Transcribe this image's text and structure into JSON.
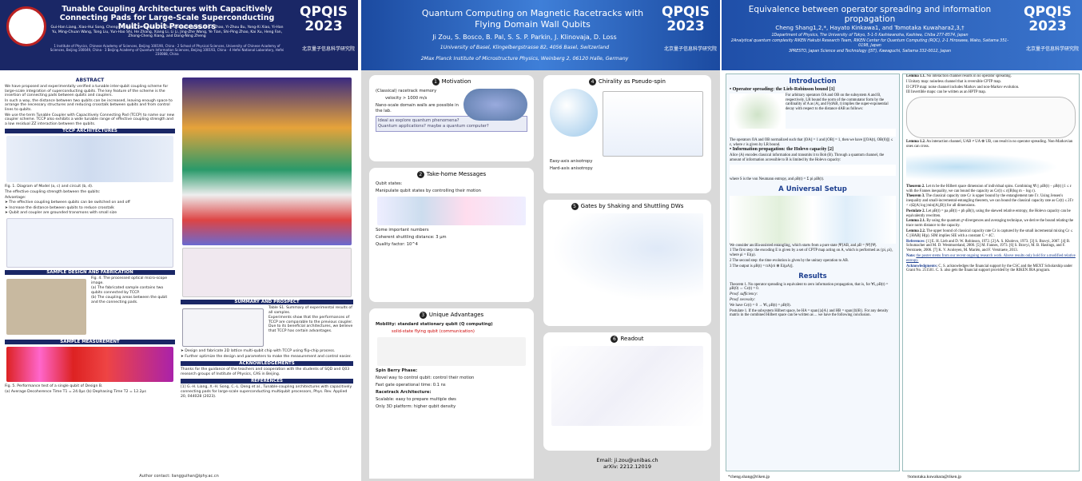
{
  "posters": [
    {
      "badge": "QPQIS 2023",
      "org": "北京量子信息科学研究院",
      "title": "Tunable Coupling Architectures with Capacitively Connecting Pads for Large-Scale Superconducting Multi-Qubit Processors",
      "authors": "Gui-Han Liang, Xiao-Hui Song, Cheng-Lin Deng, Xu-Yang Gu, Yu Yan, Zheng-Yang Mei, Si-Lu Zhao, Yi-Zhou Bu, Yong-Xi Xiao, Yi-Han Yu, Ming-Chuan Wang, Tong Liu, Yun-Hao Shi, He Zhang, Xiang Li, Li Li, Jing-Zhe Wang, Ye Tian, Shi-Ping Zhao, Kai Xu, Heng Fan, Zhong-Cheng Xiang, and Dong-Ning Zheng",
      "affiliations": "1 Institute of Physics, Chinese Academy of Sciences, Beijing 100190, China · 2 School of Physical Sciences, University of Chinese Academy of Sciences, Beijing 100049, China · 3 Beijing Academy of Quantum Information Sciences, Beijing 100193, China · 4 Hefei National Laboratory, Hefei 230088, China",
      "sections": [
        {
          "heading": "ABSTRACT",
          "lines": [
            "We have proposed and experimentally verified a tunable inter-qubit coupling scheme for large-scale integration of superconducting qubits. The key feature of the scheme is the insertion of connecting pads between qubits and couplers.",
            "In such a way, the distance between two qubits can be increased, leaving enough space to arrange the necessary structures and reducing crosstalk between qubits and from control lines to qubits.",
            "We use the term Tunable Coupler with Capacitively Connecting Pad (TCCP) to name our new coupler scheme. TCCP also exhibits a wide tunable range of effective coupling strength and a low residual ZZ interaction between the qubits."
          ]
        },
        {
          "heading": "TCCP ARCHITECTURES",
          "lines": [
            "Fig. 1. Diagram of Model (a, c) and circuit (b, d).",
            "The effective coupling strength between the qubits:",
            "Advantage:",
            "➤ The effective coupling between qubits can be switched on and off",
            "➤ Increase the distance between qubits to reduce crosstalk",
            "➤ Qubit and coupler are grounded transmons with small size"
          ]
        },
        {
          "heading": "SAMPLE DESIGN AND FABRICATION",
          "lines": [
            "Fig. 4. The processed optical micro-scope image.",
            "(a) The fabricated sample contains two qubits connected by TCCP.",
            "(b) The coupling areas between the qubit and the connecting pads."
          ]
        },
        {
          "heading": "SAMPLE MEASUREMENT",
          "lines": [
            "Fig. 5. Performance test of a single qubit of Design B.",
            "(a) Average Decoherence Time T1 = 24.0μs  (b) Dephasing Time T2 = 12.2μs"
          ]
        },
        {
          "heading": "SUMMARY AND PROSPECT",
          "lines": [
            "Table S1. Summary of experimental results of all samples.",
            "Experiments show that the performances of TCCP are comparable to the previous coupler. Due to its beneficial architectures, we believe that TCCP has certain advantages.",
            "➤ Design and fabricate 2D lattice multi-qubit chip with TCCP using flip-chip process.",
            "➤ Further optimize the design and parameters to make the measurement and control easier."
          ]
        },
        {
          "heading": "ACKNOWLEDGEMENTS",
          "lines": [
            "Thanks for the guidance of the teachers and cooperation with the students of SQD and Q03 research groups of Institute of Physics, CAS in Beijing."
          ]
        },
        {
          "heading": "REFERENCES",
          "lines": [
            "[1] G.-H. Liang, X.-H. Song, C.-L. Deng et al., Tunable-coupling architectures with capacitively connecting pads for large-scale superconducting multiqubit processors, Phys. Rev. Applied 20, 044028 (2023)."
          ]
        }
      ],
      "footer": "Author contact: liangguihan@iphy.ac.cn"
    },
    {
      "badge": "QPQIS 2023",
      "org": "北京量子信息科学研究院",
      "title": "Quantum Computing on Magnetic Racetracks with Flying Domain Wall Qubits",
      "authors": "Ji Zou, S. Bosco, B. Pal, S. S. P. Parkin, J. Klinovaja, D. Loss",
      "affiliations": [
        "1University of Basel, Klingelbergstrasse 82, 4056 Basel, Switzerland",
        "2Max Planck Institute of Microstructure Physics, Weinberg 2, 06120 Halle, Germany"
      ],
      "panels": [
        {
          "number": "1",
          "heading": "Motivation",
          "lines": [
            "(Classical) racetrack memory",
            "velocity > 1000 m/s",
            "Nano-scale domain walls are possible in the lab.",
            "Ideal as explore quantum phenomena? Quantum applications? maybe a quantum computer?"
          ]
        },
        {
          "number": "2",
          "heading": "Take-home Messages",
          "lines": [
            "Qubit states:",
            "Manipulate qubit states by controlling their motion",
            "Some important numbers",
            "Coherent shuttling distance: 3 μm",
            "Quality factor: 10^4"
          ]
        },
        {
          "number": "3",
          "heading": "Unique Advantages",
          "lines": [
            "Mobility: standard stationary qubit (Q computing)",
            "solid-state flying qubit (communication)",
            "Spin Berry Phase:",
            "Novel way to control qubit: control their motion",
            "Fast gate operational time: 0.1 ns",
            "Racetrack Architecture:",
            "Scalable: easy to prepare multiple dws",
            "Only 3D platform: higher qubit density"
          ]
        },
        {
          "number": "4",
          "heading": "Chirality as Pseudo-spin",
          "lines": [
            "Easy-axis anisotropy",
            "Hard-axis anisotropy"
          ]
        },
        {
          "number": "5",
          "heading": "Gates by Shaking and Shuttling DWs",
          "lines": []
        },
        {
          "number": "6",
          "heading": "Readout",
          "lines": []
        }
      ],
      "email": "Email: ji.zou@unibas.ch",
      "arxiv": "arXiv: 2212.12019"
    },
    {
      "badge": "QPQIS 2023",
      "org": "北京量子信息科学研究院",
      "title": "Equivalence between operator spreading and information propagation",
      "authors": "Cheng Shang1,2,*, Hayato Kinkawa1, and Tomotaka Kuwahara2,3,†",
      "affiliations": [
        "1Department of Physics, The University of Tokyo, 5-1-5 Kashiwanoha, Kashiwa, Chiba 277-8574, Japan",
        "2Analytical quantum complexity RIKEN Hakubi Research Team, RIKEN Center for Quantum Computing (RQC), 2-1 Hirosawa, Wako, Saitama 351-0198, Japan",
        "3PRESTO, Japan Science and Technology (JST), Kawaguchi, Saitama 332-0012, Japan"
      ],
      "left": [
        {
          "heading": "Introduction",
          "lines": [
            "• Operator spreading: the Lieb-Robinson bound [1]",
            "For arbitrary operators OA and OB on the subsystem A and B, respectively, LR bound the norm of the commutator form by the cardinality of A as |A|, and F(dAB, t) implies the super-exponential decay with respect to the distance dAB as follows:",
            "The operators OA and OB normalized such that ||OA|| = 1 and ||OB|| = 1, then we have ||[OA(t), OB(0)]|| ≤ ε, where ε is given by LR bound.",
            "• Information propagation: the Holevo capacity [2]",
            "Alice (A) encodes classical information and transmits it to Bob (B). Through a quantum channel, the amount of information accessible to B is limited by the Holevo capacity:",
            "where S is the von Neumann entropy, and ρB(t) = Σ pi ρiB(t)."
          ]
        },
        {
          "heading": "A Universal Setup",
          "lines": [
            "We consider ancilla-assisted entangling, which starts from a pure state |Ψ⟩AB, and ρB = |Ψ⟩⟨Ψ|.",
            "1 The first step: the encoding E is given by a set of CPTP map acting on A, which is performed as {pi, ρi}, where ρi = Ei(ρ).",
            "2 The second step: the time evolution is given by the unitary operation to AB.",
            "3 The output is ρB(t) = trA[σi ⊗ Ei(ρA)]."
          ]
        },
        {
          "heading": "Results",
          "lines": [
            "Theorem 1. No operator spreading is equivalent to zero information propagation, that is, for ∀i, ρB(t) = ρB(0) ⇔ Cε(t) = 0.",
            "Proof. sufficiency:",
            "Proof. necessity:",
            "We have Cε(t) = 0 → ∀i, ρB(t) = ρB(0).",
            "Postulate 1. If the subsystem Hilbert space, be HA = span{|a⟩A} and HB = span{|b⟩B}. For any density matrix in the combined Hilbert space can be written as ... we have the following conclusion."
          ]
        }
      ],
      "right": [
        {
          "heading": "Lemma 1.1.",
          "lines": [
            "No interaction channel results in no operator spreading.",
            "I Unitary map: noiseless channel that is reversible CPTP map.",
            "II CPTP map: noise channel includes Markov and non-Markov evolution.",
            "III Invertible maps: can be written as an HPTP map."
          ]
        },
        {
          "heading": "Lemma 1.2.",
          "lines": [
            "An interaction channel, UAB ≠ UA ⊗ UB, can result in no operator spreading. Non-Markovian ones can cross."
          ]
        },
        {
          "heading": "Theorem 2.",
          "lines": [
            "Let m be the Hilbert space dimension of individual spins. Combining ∀i || ρiB(t) − ρB(t) ||1 ≤ ε with the Fannes inequality, we can bound the capacity as Cε(t) ≤ ε(|B|log m − log ε)."
          ]
        },
        {
          "heading": "Theorem 3.",
          "lines": [
            "The classical capacity rate Cε is upper bound by the entanglement rate Γε. Using Jensen's inequality and small-incremental-entangling theorem, we can bound the classical capacity rate as Cε(t) ≤ 2Γε < c|Ω||A| log |min(|A|,|B|)| for all dimensions."
          ]
        },
        {
          "heading": "Postulate 2.",
          "lines": [
            "Let ρB(t) = pa ρB(t) + pb ρB(t), using the skewed relative entropy, the Holevo capacity can be equivalently rewritten."
          ]
        },
        {
          "heading": "Lemma 2.1.",
          "lines": [
            "By using the quantum χ²-divergences and averaging technique, we derive the bound relating the trace norm distance to the capacity."
          ]
        },
        {
          "heading": "Lemma 2.2.",
          "lines": [
            "The upper bound of classical capacity rate Cε is captured by the small incremental mixing Cε ≤ C ||HAB|| H(p). SIM implies SIE with a constant C = 4C'."
          ]
        },
        {
          "heading": "References:",
          "lines": [
            "[1] E. H. Lieb and D. W. Robinson, 1972. [2] A. S. Kholevo, 1973. [3] S. Bravyi, 2007. [4] B. Schumacher and M. D. Westmoreland, 2000. [5] M. Fannes, 1973. [6] S. Bravyi, M. B. Hastings, and F. Verstraete, 2006. [7] K. V. Acoleyen, M. Mariën, and F. Verstraete, 2013."
          ]
        },
        {
          "heading": "Note:",
          "lines": [
            "the poster stems from our recent ongoing research work. Above results only hold for a modified relative entropy."
          ]
        },
        {
          "heading": "Acknowledgments:",
          "lines": [
            "C. S. acknowledges the financial support by the CSC and the MEXT Scholarship under Grant No. 211501. C. S. also gets the financial support provided by the RIKEN JRA program."
          ]
        }
      ],
      "contact1": "*cheng.shang@riken.jp",
      "contact2": "†tomotaka.kuwahara@riken.jp"
    }
  ]
}
